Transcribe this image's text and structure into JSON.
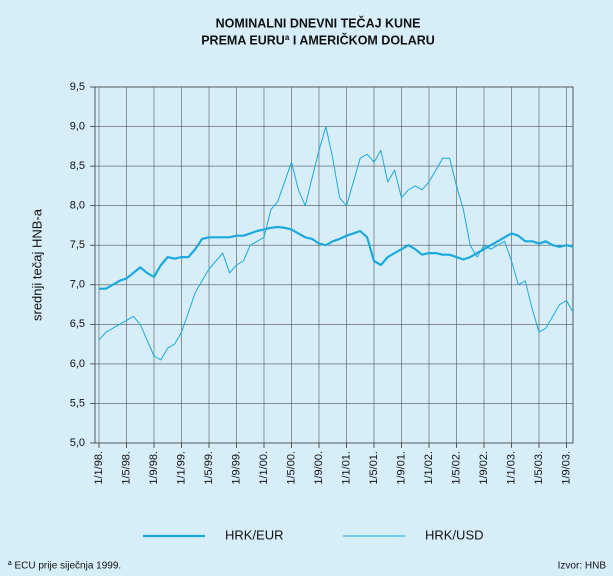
{
  "chart_data": {
    "type": "line",
    "title": [
      "NOMINALNI DNEVNI TEČAJ KUNE",
      "PREMA EURUª I AMERIČKOM DOLARU"
    ],
    "y_label": "srednji tečaj HNB-a",
    "footnote": "ª ECU prije siječnja 1999.",
    "source": "Izvor: HNB",
    "categories": [
      "1/1/98.",
      null,
      null,
      null,
      "1/5/98.",
      null,
      null,
      null,
      "1/9/98.",
      null,
      null,
      null,
      "1/1/99.",
      null,
      null,
      null,
      "1/5/99.",
      null,
      null,
      null,
      "1/9/99.",
      null,
      null,
      null,
      "1/1/00.",
      null,
      null,
      null,
      "1/5/00.",
      null,
      null,
      null,
      "1/9/00.",
      null,
      null,
      null,
      "1/1/01.",
      null,
      null,
      null,
      "1/5/01.",
      null,
      null,
      null,
      "1/9/01.",
      null,
      null,
      null,
      "1/1/02.",
      null,
      null,
      null,
      "1/5/02.",
      null,
      null,
      null,
      "1/9/02.",
      null,
      null,
      null,
      "1/1/03.",
      null,
      null,
      null,
      "1/5/03.",
      null,
      null,
      null,
      "1/9/03.",
      null
    ],
    "series": [
      {
        "name": "HRK/EUR",
        "color": "#1ba9de",
        "width": 2.2,
        "values": [
          6.95,
          6.95,
          7.0,
          7.05,
          7.08,
          7.15,
          7.22,
          7.15,
          7.1,
          7.25,
          7.35,
          7.33,
          7.35,
          7.35,
          7.45,
          7.58,
          7.6,
          7.6,
          7.6,
          7.6,
          7.62,
          7.62,
          7.65,
          7.68,
          7.7,
          7.72,
          7.73,
          7.72,
          7.7,
          7.65,
          7.6,
          7.58,
          7.52,
          7.5,
          7.55,
          7.58,
          7.62,
          7.65,
          7.68,
          7.6,
          7.3,
          7.25,
          7.35,
          7.4,
          7.45,
          7.5,
          7.45,
          7.38,
          7.4,
          7.4,
          7.38,
          7.38,
          7.35,
          7.32,
          7.35,
          7.4,
          7.45,
          7.5,
          7.55,
          7.6,
          7.65,
          7.62,
          7.55,
          7.55,
          7.52,
          7.55,
          7.5,
          7.48,
          7.5,
          7.48
        ]
      },
      {
        "name": "HRK/USD",
        "color": "#1ba9de",
        "width": 1,
        "values": [
          6.3,
          6.4,
          6.45,
          6.5,
          6.55,
          6.6,
          6.5,
          6.3,
          6.1,
          6.05,
          6.2,
          6.25,
          6.4,
          6.65,
          6.9,
          7.05,
          7.2,
          7.3,
          7.4,
          7.15,
          7.25,
          7.3,
          7.5,
          7.55,
          7.6,
          7.95,
          8.05,
          8.3,
          8.55,
          8.2,
          8.0,
          8.35,
          8.7,
          9.0,
          8.6,
          8.1,
          8.0,
          8.3,
          8.6,
          8.65,
          8.55,
          8.7,
          8.3,
          8.45,
          8.1,
          8.2,
          8.25,
          8.2,
          8.3,
          8.45,
          8.6,
          8.6,
          8.25,
          7.95,
          7.5,
          7.35,
          7.5,
          7.45,
          7.5,
          7.55,
          7.3,
          7.0,
          7.05,
          6.7,
          6.4,
          6.45,
          6.6,
          6.75,
          6.8,
          6.65
        ]
      }
    ],
    "ylim": [
      5.0,
      9.5
    ],
    "yticks": [
      {
        "value": 5.0,
        "label": "5,0"
      },
      {
        "value": 5.5,
        "label": "5,5"
      },
      {
        "value": 6.0,
        "label": "6,0"
      },
      {
        "value": 6.5,
        "label": "6,5"
      },
      {
        "value": 7.0,
        "label": "7,0"
      },
      {
        "value": 7.5,
        "label": "7,5"
      },
      {
        "value": 8.0,
        "label": "8,0"
      },
      {
        "value": 8.5,
        "label": "8,5"
      },
      {
        "value": 9.0,
        "label": "9,0"
      },
      {
        "value": 9.5,
        "label": "9,5"
      }
    ],
    "grid": true
  }
}
